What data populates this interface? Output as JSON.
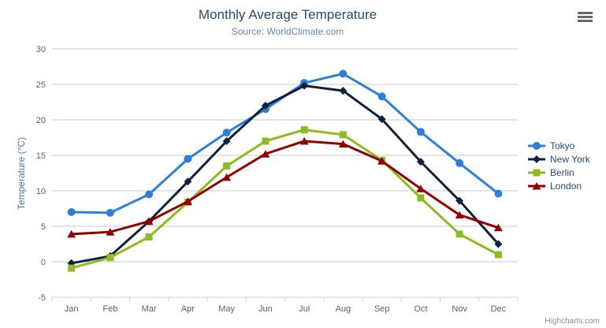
{
  "chart": {
    "title": "Monthly Average Temperature",
    "subtitle": "Source: WorldClimate.com",
    "credits": "Highcharts.com"
  },
  "chart_data": {
    "type": "line",
    "title": "Monthly Average Temperature",
    "subtitle": "Source: WorldClimate.com",
    "categories": [
      "Jan",
      "Feb",
      "Mar",
      "Apr",
      "May",
      "Jun",
      "Jul",
      "Aug",
      "Sep",
      "Oct",
      "Nov",
      "Dec"
    ],
    "series": [
      {
        "name": "Tokyo",
        "color": "#2f7ed8",
        "marker": "circle",
        "values": [
          7.0,
          6.9,
          9.5,
          14.5,
          18.2,
          21.5,
          25.2,
          26.5,
          23.3,
          18.3,
          13.9,
          9.6
        ]
      },
      {
        "name": "New York",
        "color": "#0d233a",
        "marker": "diamond",
        "values": [
          -0.2,
          0.8,
          5.7,
          11.3,
          17.0,
          22.0,
          24.8,
          24.1,
          20.1,
          14.1,
          8.6,
          2.5
        ]
      },
      {
        "name": "Berlin",
        "color": "#8bbc21",
        "marker": "square",
        "values": [
          -0.9,
          0.6,
          3.5,
          8.4,
          13.5,
          17.0,
          18.6,
          17.9,
          14.3,
          9.0,
          3.9,
          1.0
        ]
      },
      {
        "name": "London",
        "color": "#910000",
        "marker": "triangle",
        "values": [
          3.9,
          4.2,
          5.7,
          8.5,
          11.9,
          15.2,
          17.0,
          16.6,
          14.2,
          10.3,
          6.6,
          4.8
        ]
      }
    ],
    "xlabel": "",
    "ylabel": "Temperature (°C)",
    "ylim": [
      -5,
      30
    ],
    "ytick_step": 5,
    "grid": true,
    "grid_color": "#c8c8c8",
    "axis_line_color": "#c0d0e0",
    "tick_label_color": "#606060",
    "legend_position": "right"
  }
}
